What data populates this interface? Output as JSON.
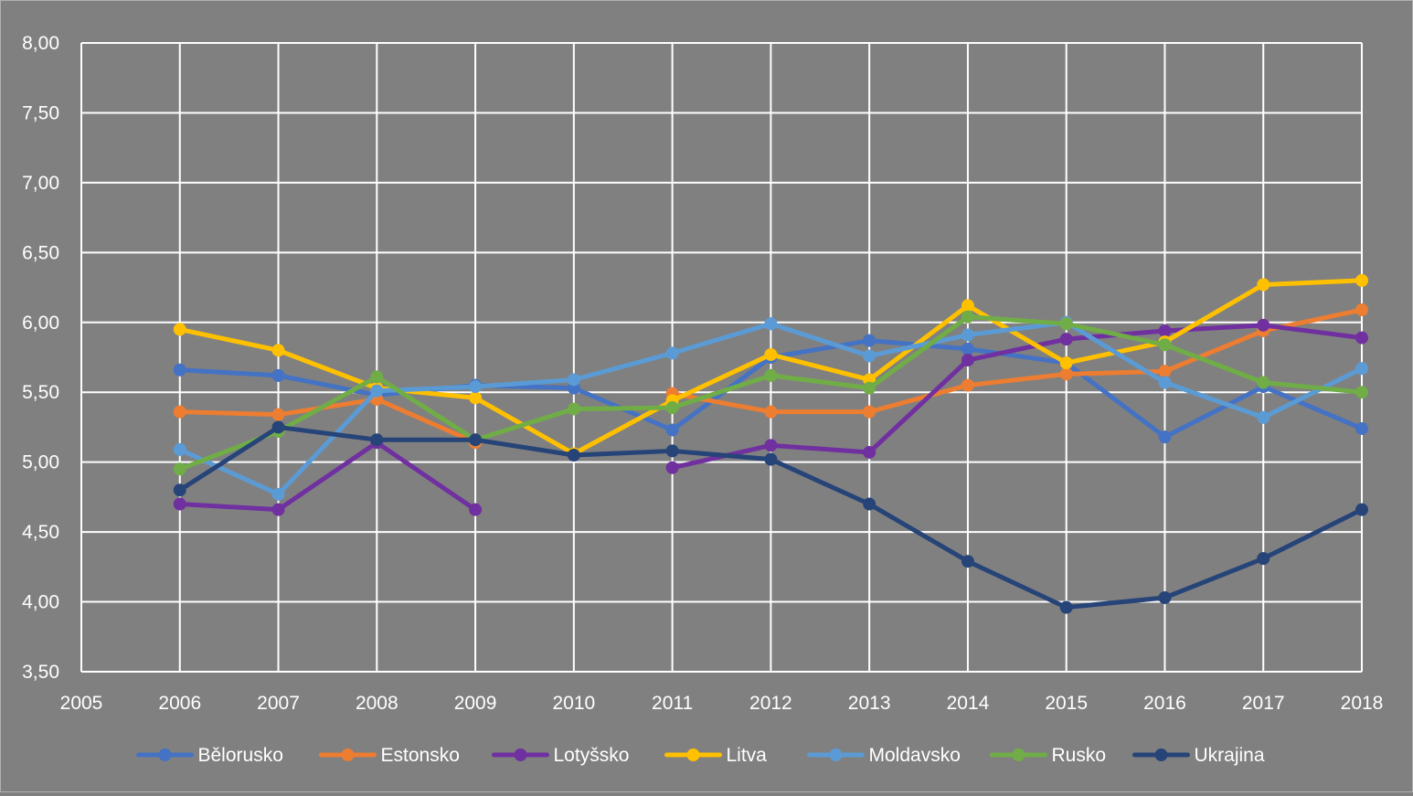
{
  "chart_data": {
    "type": "line",
    "title": "",
    "xlabel": "",
    "ylabel": "",
    "x_ticks": [
      "2005",
      "2006",
      "2007",
      "2008",
      "2009",
      "2010",
      "2011",
      "2012",
      "2013",
      "2014",
      "2015",
      "2016",
      "2017",
      "2018"
    ],
    "y_ticks": [
      "3,50",
      "4,00",
      "4,50",
      "5,00",
      "5,50",
      "6,00",
      "6,50",
      "7,00",
      "7,50",
      "8,00"
    ],
    "xlim": [
      2005,
      2018
    ],
    "ylim": [
      3.5,
      8.0
    ],
    "grid": true,
    "legend_position": "bottom",
    "x": [
      2006,
      2007,
      2008,
      2009,
      2010,
      2011,
      2012,
      2013,
      2014,
      2015,
      2016,
      2017,
      2018
    ],
    "series": [
      {
        "name": "Bělorusko",
        "color": "#4472C4",
        "values": [
          5.66,
          5.62,
          5.48,
          5.55,
          5.53,
          5.23,
          5.75,
          5.87,
          5.81,
          5.71,
          5.18,
          5.54,
          5.24
        ]
      },
      {
        "name": "Estonsko",
        "color": "#ED7D31",
        "values": [
          5.36,
          5.34,
          5.45,
          5.14,
          null,
          5.49,
          5.36,
          5.36,
          5.55,
          5.63,
          5.65,
          5.94,
          6.09
        ]
      },
      {
        "name": "Lotyšsko",
        "color": "#7030A0",
        "values": [
          4.7,
          4.66,
          5.14,
          4.66,
          null,
          4.96,
          5.12,
          5.07,
          5.73,
          5.88,
          5.94,
          5.98,
          5.89
        ]
      },
      {
        "name": "Litva",
        "color": "#FFC000",
        "values": [
          5.95,
          5.8,
          5.53,
          5.46,
          5.06,
          5.44,
          5.77,
          5.59,
          6.12,
          5.71,
          5.86,
          6.27,
          6.3
        ]
      },
      {
        "name": "Moldavsko",
        "color": "#5B9BD5",
        "values": [
          5.09,
          4.77,
          5.51,
          5.54,
          5.59,
          5.78,
          5.99,
          5.76,
          5.91,
          6.0,
          5.57,
          5.32,
          5.67
        ]
      },
      {
        "name": "Rusko",
        "color": "#70AD47",
        "values": [
          4.95,
          5.22,
          5.61,
          5.16,
          5.38,
          5.39,
          5.62,
          5.53,
          6.04,
          5.99,
          5.84,
          5.57,
          5.5
        ]
      },
      {
        "name": "Ukrajina",
        "color": "#264478",
        "values": [
          4.8,
          5.25,
          5.16,
          5.16,
          5.05,
          5.08,
          5.02,
          4.7,
          4.29,
          3.96,
          4.03,
          4.31,
          4.66
        ]
      }
    ]
  }
}
